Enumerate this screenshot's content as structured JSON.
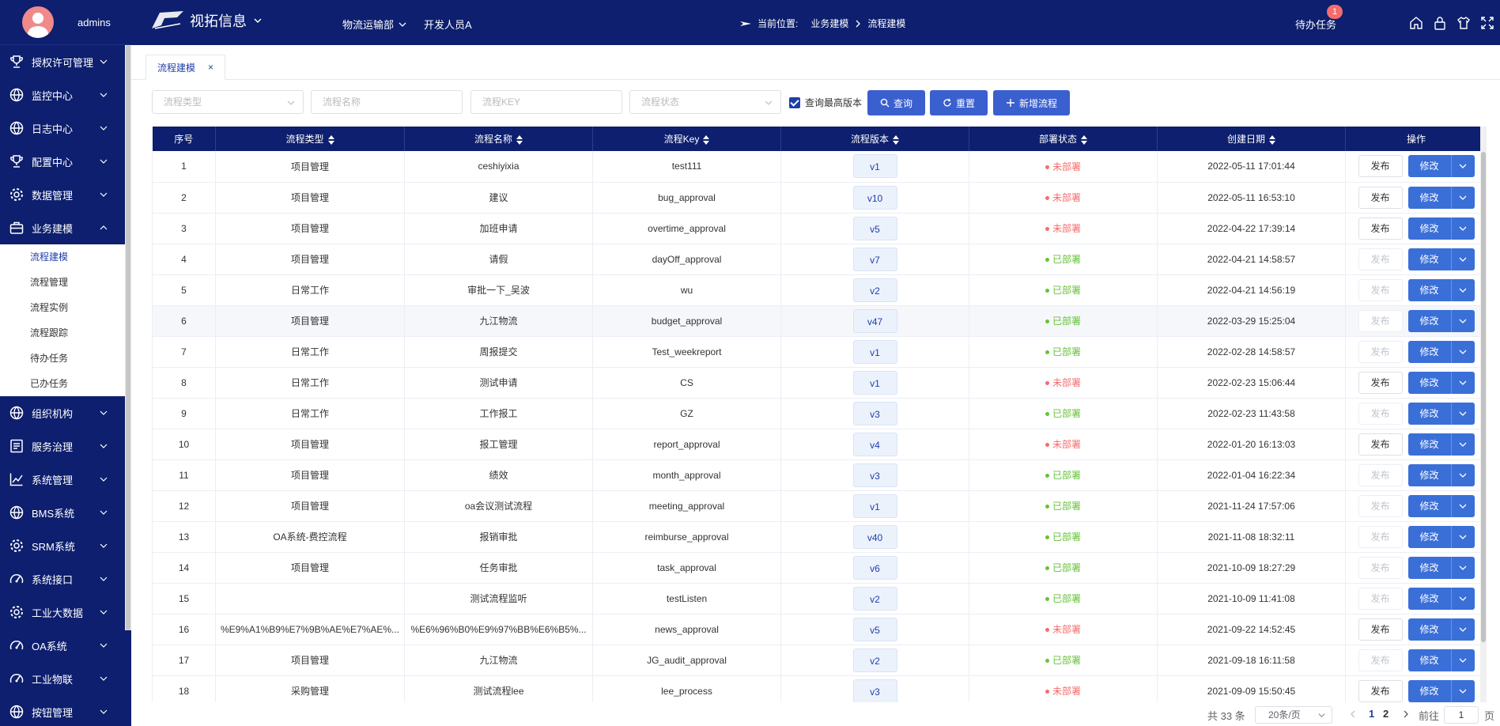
{
  "user": {
    "name": "admins"
  },
  "sidebar": {
    "items": [
      {
        "label": "授权许可管理",
        "icon": "trophy-icon"
      },
      {
        "label": "监控中心",
        "icon": "globe-icon"
      },
      {
        "label": "日志中心",
        "icon": "globe-icon"
      },
      {
        "label": "配置中心",
        "icon": "trophy-icon"
      },
      {
        "label": "数据管理",
        "icon": "gear-icon"
      },
      {
        "label": "业务建模",
        "icon": "briefcase-icon",
        "expanded": true
      }
    ],
    "submenu": [
      "流程建模",
      "流程管理",
      "流程实例",
      "流程跟踪",
      "待办任务",
      "已办任务"
    ],
    "items_after": [
      {
        "label": "组织机构",
        "icon": "globe-icon"
      },
      {
        "label": "服务治理",
        "icon": "document-icon"
      },
      {
        "label": "系统管理",
        "icon": "chart-line-icon"
      },
      {
        "label": "BMS系统",
        "icon": "globe-icon"
      },
      {
        "label": "SRM系统",
        "icon": "gear-icon"
      },
      {
        "label": "系统接口",
        "icon": "gauge-icon"
      },
      {
        "label": "工业大数据",
        "icon": "gear-icon"
      },
      {
        "label": "OA系统",
        "icon": "gauge-icon"
      },
      {
        "label": "工业物联",
        "icon": "gauge-icon"
      },
      {
        "label": "按钮管理",
        "icon": "globe-icon"
      }
    ]
  },
  "header": {
    "app_name": "视拓信息",
    "nav": [
      "物流运输部",
      "开发人员A"
    ],
    "breadcrumb_prefix": "当前位置:",
    "breadcrumb": [
      "业务建模",
      "流程建模"
    ],
    "todo_label": "待办任务",
    "todo_count": "1",
    "icons": [
      "home-icon",
      "lock-icon",
      "shirt-icon",
      "fullscreen-icon"
    ]
  },
  "tabs": [
    {
      "label": "流程建模",
      "close": "×"
    }
  ],
  "filters": {
    "type_placeholder": "流程类型",
    "name_placeholder": "流程名称",
    "key_placeholder": "流程KEY",
    "status_placeholder": "流程状态",
    "latest_label": "查询最高版本",
    "search_label": "查询",
    "reset_label": "重置",
    "add_label": "新增流程"
  },
  "table": {
    "columns": [
      "序号",
      "流程类型",
      "流程名称",
      "流程Key",
      "流程版本",
      "部署状态",
      "创建日期",
      "操作"
    ],
    "publish_label": "发布",
    "edit_label": "修改",
    "rows": [
      {
        "no": "1",
        "type": "项目管理",
        "name": "ceshiyixia",
        "key": "test111",
        "ver": "v1",
        "status": "未部署",
        "date": "2022-05-11 17:01:44"
      },
      {
        "no": "2",
        "type": "项目管理",
        "name": "建议",
        "key": "bug_approval",
        "ver": "v10",
        "status": "未部署",
        "date": "2022-05-11 16:53:10"
      },
      {
        "no": "3",
        "type": "项目管理",
        "name": "加班申请",
        "key": "overtime_approval",
        "ver": "v5",
        "status": "未部署",
        "date": "2022-04-22 17:39:14"
      },
      {
        "no": "4",
        "type": "项目管理",
        "name": "请假",
        "key": "dayOff_approval",
        "ver": "v7",
        "status": "已部署",
        "date": "2022-04-21 14:58:57"
      },
      {
        "no": "5",
        "type": "日常工作",
        "name": "审批一下_吴波",
        "key": "wu",
        "ver": "v2",
        "status": "已部署",
        "date": "2022-04-21 14:56:19"
      },
      {
        "no": "6",
        "type": "项目管理",
        "name": "九江物流",
        "key": "budget_approval",
        "ver": "v47",
        "status": "已部署",
        "date": "2022-03-29 15:25:04"
      },
      {
        "no": "7",
        "type": "日常工作",
        "name": "周报提交",
        "key": "Test_weekreport",
        "ver": "v1",
        "status": "已部署",
        "date": "2022-02-28 14:58:57"
      },
      {
        "no": "8",
        "type": "日常工作",
        "name": "测试申请",
        "key": "CS",
        "ver": "v1",
        "status": "未部署",
        "date": "2022-02-23 15:06:44"
      },
      {
        "no": "9",
        "type": "日常工作",
        "name": "工作报工",
        "key": "GZ",
        "ver": "v3",
        "status": "已部署",
        "date": "2022-02-23 11:43:58"
      },
      {
        "no": "10",
        "type": "项目管理",
        "name": "报工管理",
        "key": "report_approval",
        "ver": "v4",
        "status": "未部署",
        "date": "2022-01-20 16:13:03"
      },
      {
        "no": "11",
        "type": "项目管理",
        "name": "绩效",
        "key": "month_approval",
        "ver": "v3",
        "status": "已部署",
        "date": "2022-01-04 16:22:34"
      },
      {
        "no": "12",
        "type": "项目管理",
        "name": "oa会议测试流程",
        "key": "meeting_approval",
        "ver": "v1",
        "status": "已部署",
        "date": "2021-11-24 17:57:06"
      },
      {
        "no": "13",
        "type": "OA系统-费控流程",
        "name": "报销审批",
        "key": "reimburse_approval",
        "ver": "v40",
        "status": "已部署",
        "date": "2021-11-08 18:32:11"
      },
      {
        "no": "14",
        "type": "项目管理",
        "name": "任务审批",
        "key": "task_approval",
        "ver": "v6",
        "status": "已部署",
        "date": "2021-10-09 18:27:29"
      },
      {
        "no": "15",
        "type": "",
        "name": "测试流程监听",
        "key": "testListen",
        "ver": "v2",
        "status": "已部署",
        "date": "2021-10-09 11:41:08"
      },
      {
        "no": "16",
        "type": "%E9%A1%B9%E7%9B%AE%E7%AE%...",
        "name": "%E6%96%B0%E9%97%BB%E6%B5%...",
        "key": "news_approval",
        "ver": "v5",
        "status": "未部署",
        "date": "2021-09-22 14:52:45"
      },
      {
        "no": "17",
        "type": "项目管理",
        "name": "九江物流",
        "key": "JG_audit_approval",
        "ver": "v2",
        "status": "已部署",
        "date": "2021-09-18 16:11:58"
      },
      {
        "no": "18",
        "type": "采购管理",
        "name": "测试流程lee",
        "key": "lee_process",
        "ver": "v3",
        "status": "未部署",
        "date": "2021-09-09 15:50:45"
      }
    ]
  },
  "pagination": {
    "total": "共 33 条",
    "page_size": "20条/页",
    "pages": [
      "1",
      "2"
    ],
    "current": "1",
    "goto_label": "前往",
    "goto_value": "1",
    "page_unit": "页"
  },
  "colors": {
    "navy": "#0d1f6e",
    "primary": "#3a6fd8",
    "red": "#f56c6c",
    "green": "#67c23a"
  }
}
